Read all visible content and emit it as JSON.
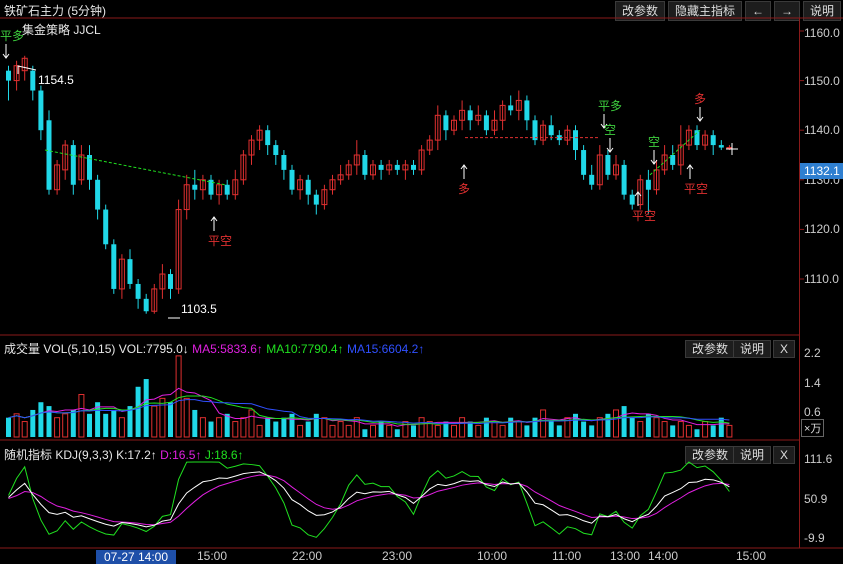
{
  "window": {
    "title": "铁矿石主力 (5分钟)",
    "strategy": "集金策略 JJCL"
  },
  "toolbar": {
    "change_params": "改参数",
    "hide_indicator": "隐藏主指标",
    "left_arrow": "←",
    "right_arrow": "→",
    "help": "说明"
  },
  "price_axis": [
    "1160.0",
    "1150.0",
    "1140.0",
    "1130.0",
    "1120.0",
    "1110.0"
  ],
  "current_price": "1132.1",
  "annotations": {
    "high": "1154.5",
    "low": "1103.5",
    "signals": [
      {
        "text": "平多",
        "color": "#3ecf3e"
      },
      {
        "text": "平空",
        "color": "#e03030"
      },
      {
        "text": "多",
        "color": "#e03030"
      },
      {
        "text": "平多",
        "color": "#3ecf3e"
      },
      {
        "text": "空",
        "color": "#3ecf3e"
      },
      {
        "text": "空",
        "color": "#3ecf3e"
      },
      {
        "text": "平空",
        "color": "#e03030"
      },
      {
        "text": "多",
        "color": "#e03030"
      },
      {
        "text": "平空",
        "color": "#e03030"
      }
    ]
  },
  "volume": {
    "label": "成交量",
    "params": "VOL(5,10,15)",
    "vol": "VOL:7795.0↓",
    "ma5": "MA5:5833.6↑",
    "ma10": "MA10:7790.4↑",
    "ma15": "MA15:6604.2↑",
    "axis": [
      "2.2",
      "1.4",
      "0.6"
    ],
    "unit": "×万",
    "change_params": "改参数",
    "help": "说明",
    "close": "X"
  },
  "kdj": {
    "label": "随机指标",
    "params": "KDJ(9,3,3)",
    "k": "K:17.2↑",
    "d": "D:16.5↑",
    "j": "J:18.6↑",
    "axis": [
      "111.6",
      "50.9",
      "-9.9"
    ],
    "change_params": "改参数",
    "help": "说明",
    "close": "X"
  },
  "time_axis": {
    "cursor": "07-27 14:00",
    "labels": [
      "15:00",
      "22:00",
      "23:00",
      "10:00",
      "11:00",
      "13:00",
      "14:00",
      "15:00"
    ]
  },
  "colors": {
    "up": "#e03030",
    "down": "#20d8e8",
    "ma5": "#e020e0",
    "ma10": "#20e020",
    "ma15": "#3050ff",
    "k": "#ffffff",
    "d": "#e020e0",
    "j": "#20e020"
  },
  "chart_data": {
    "type": "candlestick",
    "price_range": [
      1100,
      1162
    ],
    "candles": [
      [
        1152,
        1150,
        1153,
        1146
      ],
      [
        1150,
        1153,
        1154,
        1148
      ],
      [
        1152,
        1154.5,
        1155,
        1150
      ],
      [
        1152,
        1148,
        1153,
        1146
      ],
      [
        1148,
        1140,
        1149,
        1138
      ],
      [
        1142,
        1128,
        1144,
        1127
      ],
      [
        1128,
        1133,
        1134,
        1127
      ],
      [
        1132,
        1137,
        1138,
        1130
      ],
      [
        1137,
        1129,
        1138,
        1127
      ],
      [
        1130,
        1135,
        1137,
        1129
      ],
      [
        1135,
        1130,
        1137,
        1128
      ],
      [
        1130,
        1124,
        1131,
        1122
      ],
      [
        1124,
        1117,
        1125,
        1116
      ],
      [
        1117,
        1108,
        1118,
        1107
      ],
      [
        1108,
        1114,
        1115,
        1106
      ],
      [
        1114,
        1109,
        1116,
        1108
      ],
      [
        1109,
        1106,
        1110,
        1104
      ],
      [
        1106,
        1103.5,
        1107,
        1103
      ],
      [
        1103.5,
        1108,
        1109,
        1103
      ],
      [
        1108,
        1111,
        1113,
        1106
      ],
      [
        1111,
        1108,
        1112,
        1106
      ],
      [
        1108,
        1124,
        1126,
        1107
      ],
      [
        1124,
        1129,
        1131,
        1122
      ],
      [
        1129,
        1128,
        1132,
        1126
      ],
      [
        1128,
        1130,
        1131,
        1126
      ],
      [
        1130,
        1127,
        1131,
        1126
      ],
      [
        1127,
        1129,
        1130,
        1125
      ],
      [
        1129,
        1127,
        1130,
        1126
      ],
      [
        1127,
        1130,
        1132,
        1126
      ],
      [
        1130,
        1135,
        1136,
        1129
      ],
      [
        1135,
        1138,
        1139,
        1133
      ],
      [
        1138,
        1140,
        1141,
        1136
      ],
      [
        1140,
        1137,
        1141,
        1135
      ],
      [
        1137,
        1135,
        1138,
        1133
      ],
      [
        1135,
        1132,
        1136,
        1130
      ],
      [
        1132,
        1128,
        1133,
        1127
      ],
      [
        1128,
        1130,
        1131,
        1126
      ],
      [
        1130,
        1127,
        1131,
        1125
      ],
      [
        1127,
        1125,
        1128,
        1123
      ],
      [
        1125,
        1128,
        1129,
        1124
      ],
      [
        1128,
        1130,
        1131,
        1127
      ],
      [
        1130,
        1131,
        1133,
        1129
      ],
      [
        1131,
        1133,
        1134,
        1130
      ],
      [
        1133,
        1135,
        1138,
        1131
      ],
      [
        1135,
        1131,
        1136,
        1130
      ],
      [
        1131,
        1133,
        1134,
        1130
      ],
      [
        1133,
        1132,
        1134,
        1130
      ],
      [
        1132,
        1133,
        1134,
        1131
      ],
      [
        1133,
        1132,
        1134,
        1131
      ],
      [
        1132,
        1133,
        1134,
        1130
      ],
      [
        1133,
        1132,
        1134,
        1131
      ],
      [
        1132,
        1136,
        1137,
        1131
      ],
      [
        1136,
        1138,
        1139,
        1135
      ],
      [
        1138,
        1143,
        1145,
        1136
      ],
      [
        1143,
        1140,
        1144,
        1138
      ],
      [
        1140,
        1142,
        1143,
        1139
      ],
      [
        1142,
        1144,
        1146,
        1140
      ],
      [
        1144,
        1142,
        1145,
        1140
      ],
      [
        1142,
        1143,
        1145,
        1141
      ],
      [
        1143,
        1140,
        1144,
        1139
      ],
      [
        1140,
        1142,
        1144,
        1139
      ],
      [
        1142,
        1145,
        1146,
        1140
      ],
      [
        1145,
        1144,
        1147,
        1143
      ],
      [
        1144,
        1146,
        1148,
        1142
      ],
      [
        1146,
        1142,
        1147,
        1140
      ],
      [
        1142,
        1138,
        1143,
        1137
      ],
      [
        1138,
        1141,
        1142,
        1137
      ],
      [
        1141,
        1139,
        1143,
        1138
      ],
      [
        1139,
        1138,
        1140,
        1137
      ],
      [
        1138,
        1140,
        1141,
        1137
      ],
      [
        1140,
        1136,
        1141,
        1134
      ],
      [
        1136,
        1131,
        1137,
        1130
      ],
      [
        1131,
        1129,
        1133,
        1128
      ],
      [
        1129,
        1135,
        1137,
        1128
      ],
      [
        1135,
        1131,
        1136,
        1130
      ],
      [
        1131,
        1133,
        1135,
        1130
      ],
      [
        1133,
        1127,
        1134,
        1126
      ],
      [
        1127,
        1125,
        1128,
        1124
      ],
      [
        1125,
        1130,
        1131,
        1124
      ],
      [
        1130,
        1128,
        1132,
        1123
      ],
      [
        1128,
        1132,
        1134,
        1127
      ],
      [
        1132,
        1135,
        1137,
        1131
      ],
      [
        1135,
        1133,
        1137,
        1132
      ],
      [
        1133,
        1137,
        1141,
        1131
      ],
      [
        1137,
        1140,
        1141,
        1136
      ],
      [
        1140,
        1137,
        1141,
        1136
      ],
      [
        1137,
        1139,
        1140,
        1136
      ],
      [
        1139,
        1137,
        1140,
        1135
      ],
      [
        1137,
        1136.5,
        1138,
        1136
      ],
      [
        1136.5,
        1136.5,
        1137,
        1136
      ]
    ],
    "volume": [
      0.5,
      0.6,
      0.4,
      0.7,
      0.9,
      0.8,
      0.5,
      0.6,
      0.7,
      1.1,
      0.6,
      0.9,
      0.6,
      0.7,
      0.5,
      0.8,
      1.3,
      1.5,
      0.8,
      1.0,
      0.9,
      2.1,
      1.0,
      0.7,
      0.5,
      0.4,
      0.5,
      0.6,
      0.4,
      0.5,
      0.7,
      0.3,
      0.5,
      0.4,
      0.5,
      0.6,
      0.3,
      0.4,
      0.6,
      0.5,
      0.3,
      0.4,
      0.3,
      0.5,
      0.2,
      0.3,
      0.4,
      0.3,
      0.2,
      0.4,
      0.3,
      0.5,
      0.4,
      0.3,
      0.4,
      0.3,
      0.5,
      0.4,
      0.3,
      0.5,
      0.4,
      0.3,
      0.5,
      0.4,
      0.3,
      0.5,
      0.7,
      0.4,
      0.3,
      0.5,
      0.6,
      0.4,
      0.3,
      0.5,
      0.6,
      0.7,
      0.8,
      0.5,
      0.4,
      0.6,
      0.5,
      0.4,
      0.3,
      0.4,
      0.3,
      0.2,
      0.4,
      0.3,
      0.5,
      0.3
    ]
  }
}
